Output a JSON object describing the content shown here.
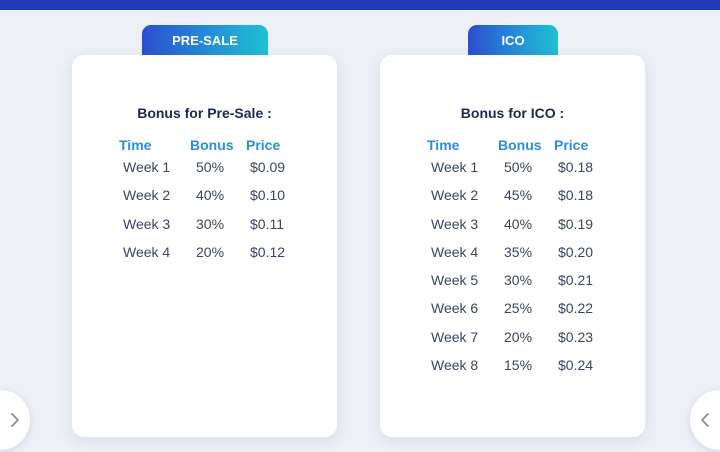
{
  "presale": {
    "tab_label": "PRE-SALE",
    "heading": "Bonus for Pre-Sale :",
    "columns": {
      "time": "Time",
      "bonus": "Bonus",
      "price": "Price"
    },
    "rows": [
      {
        "time": "Week 1",
        "bonus": "50%",
        "price": "$0.09"
      },
      {
        "time": "Week 2",
        "bonus": "40%",
        "price": "$0.10"
      },
      {
        "time": "Week 3",
        "bonus": "30%",
        "price": "$0.11"
      },
      {
        "time": "Week 4",
        "bonus": "20%",
        "price": "$0.12"
      }
    ]
  },
  "ico": {
    "tab_label": "ICO",
    "heading": "Bonus for ICO :",
    "columns": {
      "time": "Time",
      "bonus": "Bonus",
      "price": "Price"
    },
    "rows": [
      {
        "time": "Week 1",
        "bonus": "50%",
        "price": "$0.18"
      },
      {
        "time": "Week 2",
        "bonus": "45%",
        "price": "$0.18"
      },
      {
        "time": "Week 3",
        "bonus": "40%",
        "price": "$0.19"
      },
      {
        "time": "Week 4",
        "bonus": "35%",
        "price": "$0.20"
      },
      {
        "time": "Week 5",
        "bonus": "30%",
        "price": "$0.21"
      },
      {
        "time": "Week 6",
        "bonus": "25%",
        "price": "$0.22"
      },
      {
        "time": "Week 7",
        "bonus": "20%",
        "price": "$0.23"
      },
      {
        "time": "Week 8",
        "bonus": "15%",
        "price": "$0.24"
      }
    ]
  },
  "navigation": {
    "prev_icon": "chevron-right-icon",
    "next_icon": "chevron-left-icon"
  },
  "colors": {
    "top_bar": "#1f3bb6",
    "tab_gradient_start": "#2b4ed0",
    "tab_gradient_end": "#1fc1d2",
    "column_header": "#2a8fd6",
    "heading_text": "#1e2850",
    "cell_text": "#3b4462",
    "page_background": "#eef0f7"
  }
}
